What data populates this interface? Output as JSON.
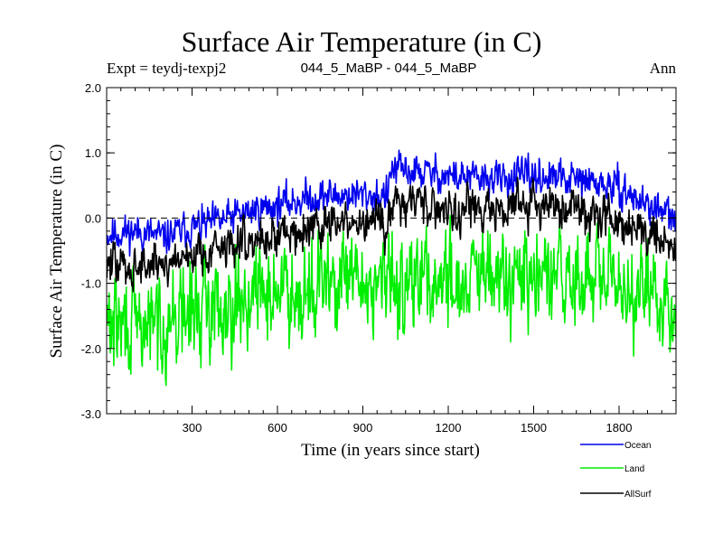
{
  "chart_data": {
    "type": "line",
    "title": "Surface Air Temperature (in C)",
    "subtitle_left": "Expt = teydj-texpj2",
    "subtitle_center": "044_5_MaBP - 044_5_MaBP",
    "subtitle_right": "Ann",
    "xlabel": "Time (in years since start)",
    "ylabel": "Surface Air Temperature (in C)",
    "xlim": [
      0,
      2000
    ],
    "ylim": [
      -3.0,
      2.0
    ],
    "xticks": [
      300,
      600,
      900,
      1200,
      1500,
      1800
    ],
    "xtick_labels": [
      "300",
      "600",
      "900",
      "1200",
      "1500",
      "1800"
    ],
    "yticks": [
      -3.0,
      -2.0,
      -1.0,
      0.0,
      1.0,
      2.0
    ],
    "ytick_labels": [
      "-3.0",
      "-2.0",
      "-1.0",
      "0.0",
      "1.0",
      "2.0"
    ],
    "reference_line": 0.0,
    "series": [
      {
        "name": "Ocean",
        "color": "#0000ee",
        "x": [
          0,
          100,
          200,
          300,
          400,
          500,
          600,
          700,
          800,
          900,
          990,
          1000,
          1100,
          1200,
          1300,
          1400,
          1500,
          1600,
          1700,
          1800,
          1900,
          1950,
          2000
        ],
        "values": [
          -0.25,
          -0.2,
          -0.3,
          -0.15,
          -0.05,
          0.1,
          0.2,
          0.3,
          0.35,
          0.35,
          0.35,
          0.75,
          0.7,
          0.65,
          0.6,
          0.6,
          0.65,
          0.6,
          0.55,
          0.45,
          0.2,
          0.1,
          -0.05
        ],
        "noise": 0.18
      },
      {
        "name": "Land",
        "color": "#00ee00",
        "x": [
          0,
          100,
          200,
          300,
          400,
          500,
          600,
          700,
          800,
          900,
          1000,
          1100,
          1200,
          1300,
          1400,
          1500,
          1600,
          1700,
          1800,
          1900,
          2000
        ],
        "values": [
          -1.6,
          -1.7,
          -1.6,
          -1.45,
          -1.3,
          -1.2,
          -1.1,
          -1.05,
          -1.0,
          -1.0,
          -1.0,
          -0.95,
          -0.95,
          -0.95,
          -0.95,
          -0.95,
          -0.95,
          -0.95,
          -1.05,
          -1.15,
          -1.4
        ],
        "noise": 0.5
      },
      {
        "name": "AllSurf",
        "color": "#000000",
        "x": [
          0,
          100,
          200,
          300,
          400,
          500,
          600,
          700,
          800,
          900,
          990,
          1000,
          1100,
          1200,
          1300,
          1400,
          1500,
          1600,
          1700,
          1800,
          1900,
          1950,
          2000
        ],
        "values": [
          -0.7,
          -0.75,
          -0.7,
          -0.55,
          -0.45,
          -0.35,
          -0.25,
          -0.15,
          -0.1,
          -0.1,
          -0.1,
          0.3,
          0.25,
          0.15,
          0.15,
          0.15,
          0.2,
          0.15,
          0.1,
          0.0,
          -0.2,
          -0.3,
          -0.5
        ],
        "noise": 0.22
      }
    ],
    "legend": [
      {
        "label": "Ocean",
        "color": "#0000ee"
      },
      {
        "label": "Land",
        "color": "#00ee00"
      },
      {
        "label": "AllSurf",
        "color": "#000000"
      }
    ]
  }
}
